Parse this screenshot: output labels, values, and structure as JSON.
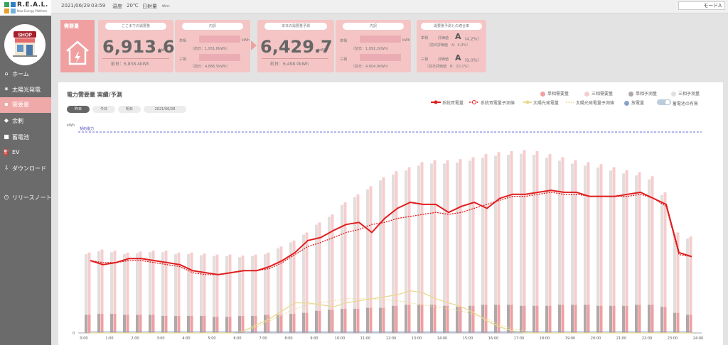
{
  "brand": {
    "name": "R.E.A.L.",
    "tagline": "New Energy Platform"
  },
  "header": {
    "date": "2021/06/29",
    "time": "03:59",
    "temp_label": "温度",
    "temp_value": "20℃",
    "sun_label": "日射量",
    "sun_unit": "W/m²",
    "mode_button": "モードA"
  },
  "sidebar": {
    "shop_label": "SHOP",
    "items": [
      {
        "icon": "home-icon",
        "glyph": "⌂",
        "label": "ホーム"
      },
      {
        "icon": "solar-icon",
        "glyph": "✷",
        "label": "太陽光発電"
      },
      {
        "icon": "demand-icon",
        "glyph": "▪",
        "label": "需要量"
      },
      {
        "icon": "surplus-icon",
        "glyph": "◆",
        "label": "余剰"
      },
      {
        "icon": "battery-icon",
        "glyph": "■",
        "label": "蓄電池"
      },
      {
        "icon": "ev-icon",
        "glyph": "⛽",
        "label": "EV"
      },
      {
        "icon": "download-icon",
        "glyph": "⇩",
        "label": "ダウンロード"
      },
      {
        "icon": "release-icon",
        "glyph": "◷",
        "label": "リリースノート"
      }
    ]
  },
  "summary": {
    "section_label": "需要量",
    "cumulative": {
      "pill": "ここまでの需要量",
      "value": "6,913.6",
      "unit": "kWh",
      "prev": "前日：6,838.4kWh"
    },
    "cumulative_detail": {
      "pill": "内訳",
      "single_label": "単相",
      "three_label": "三相",
      "unit": "kWh",
      "single_prev": "（前日：1,951.8kWh）",
      "three_prev": "（前日：4,886.5kWh）"
    },
    "forecast": {
      "pill": "本日の需要量予測",
      "value": "6,429.7",
      "unit": "kWh",
      "prev": "前日：6,498.0kWh"
    },
    "forecast_detail": {
      "pill": "内訳",
      "unit": "kWh",
      "single_prev": "（前日：1,892.2kWh）",
      "three_prev": "（前日：4,604.9kWh）"
    },
    "accuracy": {
      "pill": "需要量予測との適合率",
      "single_label": "単相",
      "three_label": "三相",
      "eval_label": "評価値",
      "single_grade": "A",
      "single_pct": "（4.2％）",
      "single_prev": "（前日評価値　A：4.3%）",
      "three_grade": "A",
      "three_pct": "（9.0％）",
      "three_prev": "（前日評価値　B：10.1%）"
    }
  },
  "chart_panel": {
    "title": "電力需要量 実績/予測",
    "day_buttons": [
      "昨日",
      "今日",
      "明日"
    ],
    "date": "2021/06/28",
    "legend_top": [
      "単相需要量",
      "三相需要量",
      "単相予測量",
      "三相予測量"
    ],
    "legend_bottom": [
      "系統買電量",
      "系統買電量予測値",
      "太陽光発電量",
      "太陽光発電量予測値",
      "放電量",
      "蓄電池の有無"
    ],
    "colors": {
      "single": "#ef9fa2",
      "three": "#f7cccd",
      "single_fc": "#b0a8a8",
      "three_fc": "#e2dede",
      "grid": "#e11d1d",
      "solar": "#e9d98e",
      "discharge": "#8aa2c8"
    }
  },
  "chart_data": {
    "type": "bar",
    "ylabel": "kWh",
    "contract_label": "契約電力",
    "x_ticks": [
      "0:00",
      "1:00",
      "2:00",
      "3:00",
      "4:00",
      "5:00",
      "6:00",
      "7:00",
      "8:00",
      "9:00",
      "10:00",
      "11:00",
      "12:00",
      "13:00",
      "14:00",
      "15:00",
      "16:00",
      "17:00",
      "18:00",
      "19:00",
      "20:00",
      "21:00",
      "22:00",
      "23:00",
      "24:00"
    ],
    "y_zero_label": "0",
    "series": [
      {
        "name": "単相需要量",
        "values": [
          18,
          19,
          19,
          18,
          18,
          18,
          17,
          17,
          17,
          17,
          16,
          16,
          17,
          17,
          18,
          18,
          19,
          20,
          22,
          23,
          24,
          24,
          25,
          25,
          27,
          28,
          28,
          28,
          27,
          26,
          27,
          28,
          28,
          28,
          27,
          27,
          27,
          28,
          28,
          28,
          27,
          27,
          27,
          28,
          28,
          26,
          20,
          18
        ]
      },
      {
        "name": "三相需要量",
        "values": [
          80,
          83,
          82,
          80,
          81,
          82,
          82,
          80,
          80,
          79,
          78,
          78,
          77,
          78,
          80,
          86,
          92,
          100,
          110,
          118,
          130,
          138,
          146,
          155,
          161,
          165,
          170,
          172,
          172,
          173,
          175,
          178,
          180,
          181,
          182,
          181,
          178,
          175,
          172,
          170,
          168,
          165,
          162,
          160,
          156,
          140,
          100,
          96
        ]
      },
      {
        "name": "系統買電量",
        "values": [
          72,
          68,
          70,
          74,
          74,
          72,
          70,
          68,
          62,
          60,
          58,
          60,
          62,
          62,
          66,
          72,
          80,
          92,
          95,
          102,
          108,
          110,
          100,
          114,
          124,
          130,
          128,
          128,
          120,
          126,
          130,
          124,
          134,
          138,
          138,
          140,
          142,
          140,
          140,
          136,
          136,
          136,
          138,
          140,
          134,
          128,
          80,
          76
        ]
      },
      {
        "name": "系統買電量予測値",
        "values": [
          72,
          70,
          70,
          72,
          72,
          70,
          68,
          66,
          60,
          58,
          58,
          60,
          62,
          62,
          64,
          70,
          78,
          86,
          90,
          95,
          100,
          103,
          108,
          110,
          114,
          116,
          118,
          120,
          118,
          120,
          124,
          128,
          132,
          136,
          136,
          138,
          140,
          138,
          138,
          136,
          136,
          136,
          136,
          138,
          134,
          126,
          78,
          76
        ]
      },
      {
        "name": "太陽光発電量",
        "values": [
          0,
          0,
          0,
          0,
          0,
          0,
          0,
          0,
          0,
          0,
          0,
          0,
          2,
          8,
          14,
          22,
          30,
          30,
          28,
          26,
          30,
          32,
          34,
          36,
          38,
          42,
          40,
          34,
          30,
          26,
          20,
          12,
          6,
          2,
          0,
          0,
          0,
          0,
          0,
          0,
          0,
          0,
          0,
          0,
          0,
          0,
          0,
          0
        ]
      },
      {
        "name": "太陽光発電量予測値",
        "values": [
          0,
          0,
          0,
          0,
          0,
          0,
          0,
          0,
          0,
          0,
          0,
          0,
          2,
          6,
          12,
          18,
          24,
          28,
          30,
          32,
          34,
          34,
          34,
          33,
          32,
          30,
          28,
          26,
          24,
          22,
          18,
          14,
          8,
          4,
          2,
          0,
          0,
          0,
          0,
          0,
          0,
          0,
          0,
          0,
          0,
          0,
          0,
          0
        ]
      },
      {
        "name": "放電量",
        "values": [
          1,
          1,
          1,
          1,
          1,
          1,
          1,
          1,
          1,
          1,
          1,
          1,
          1,
          1,
          1,
          1,
          1,
          1,
          1,
          1,
          1,
          1,
          1,
          1,
          1,
          1,
          1,
          1,
          1,
          1,
          1,
          1,
          1,
          1,
          1,
          1,
          1,
          1,
          1,
          1,
          1,
          1,
          1,
          1,
          1,
          1,
          1,
          1
        ]
      }
    ]
  }
}
